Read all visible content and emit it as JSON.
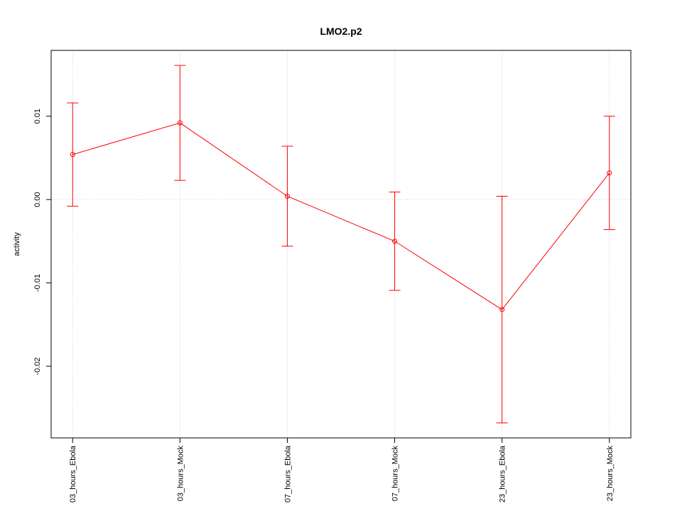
{
  "chart_data": {
    "type": "errorbar-line",
    "title": "LMO2.p2",
    "ylabel": "activity",
    "categories": [
      "03_hours_Ebola",
      "03_hours_Mock",
      "07_hours_Ebola",
      "07_hours_Mock",
      "23_hours_Ebola",
      "23_hours_Mock"
    ],
    "series": [
      {
        "color": "#ff0000",
        "values": [
          0.0054,
          0.0092,
          0.0004,
          -0.005,
          -0.0132,
          0.0032
        ],
        "errors": [
          0.0062,
          0.0069,
          0.006,
          0.0059,
          0.0136,
          0.0068
        ]
      }
    ],
    "ylim": [
      -0.0286,
      0.0179
    ],
    "yticks": [
      {
        "value": -0.02,
        "label": "-0.02"
      },
      {
        "value": -0.01,
        "label": "-0.01"
      },
      {
        "value": 0,
        "label": "0.00"
      },
      {
        "value": 0.01,
        "label": "0.01"
      }
    ],
    "reference_line": 0,
    "grid": true
  }
}
